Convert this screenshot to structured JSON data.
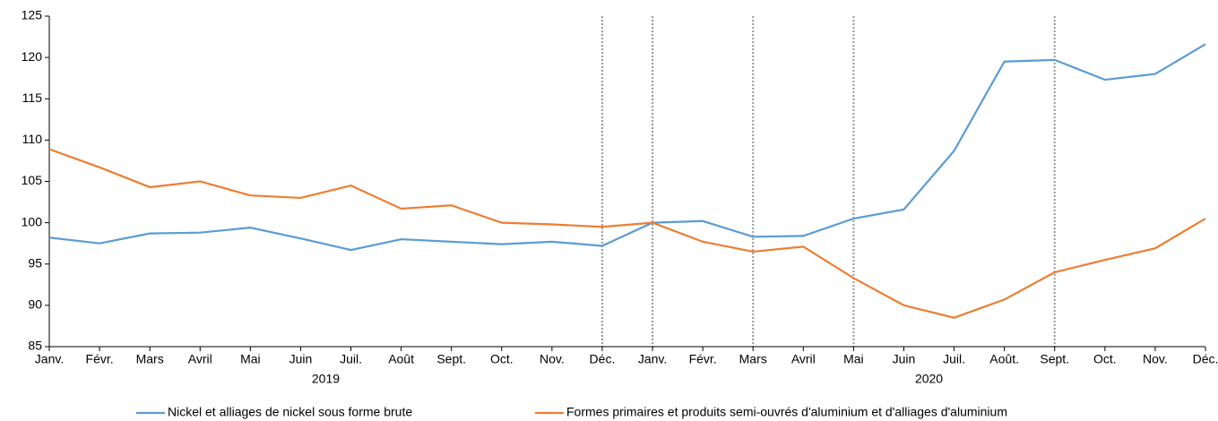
{
  "chart_data": {
    "type": "line",
    "categories": [
      "Janv.",
      "Févr.",
      "Mars",
      "Avril",
      "Mai",
      "Juin",
      "Juil.",
      "Août",
      "Sept.",
      "Oct.",
      "Nov.",
      "Déc.",
      "Janv.",
      "Févr.",
      "Mars",
      "Avril",
      "Mai",
      "Juin",
      "Juil.",
      "Août.",
      "Sept.",
      "Oct.",
      "Nov.",
      "Déc."
    ],
    "year_labels": [
      "2019",
      "2020"
    ],
    "reference_lines": [
      11,
      12,
      14,
      16,
      20
    ],
    "series": [
      {
        "name": "Nickel et alliages de nickel sous forme brute",
        "color": "#5b9bd5",
        "values": [
          98.2,
          97.5,
          98.7,
          98.8,
          99.4,
          98.1,
          96.7,
          98.0,
          97.7,
          97.4,
          97.7,
          97.2,
          100.0,
          100.2,
          98.3,
          98.4,
          100.5,
          101.6,
          108.7,
          119.5,
          119.7,
          117.3,
          118.0,
          121.6
        ]
      },
      {
        "name": "Formes primaires et produits semi-ouvrés d'aluminium et d'alliages d'aluminium",
        "color": "#ed7d31",
        "values": [
          108.9,
          106.7,
          104.3,
          105.0,
          103.3,
          103.0,
          104.5,
          101.7,
          102.1,
          100.0,
          99.8,
          99.5,
          100.0,
          97.7,
          96.5,
          97.1,
          93.3,
          90.0,
          88.5,
          90.7,
          94.0,
          95.5,
          96.9,
          100.5
        ]
      }
    ],
    "ylim": [
      85,
      125
    ],
    "yticks": [
      85,
      90,
      95,
      100,
      105,
      110,
      115,
      120,
      125
    ],
    "legend": "bottom"
  }
}
